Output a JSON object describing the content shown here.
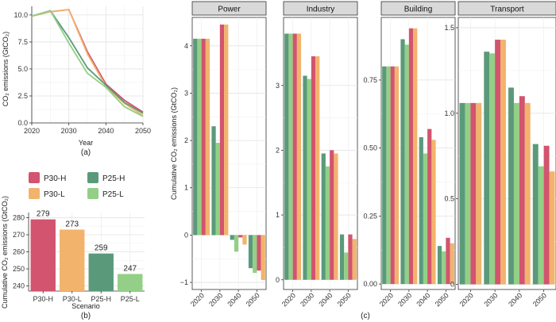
{
  "colors": {
    "P30-H": "#d2546e",
    "P30-L": "#f2b36d",
    "P25-H": "#5a9a7a",
    "P25-L": "#93cf86"
  },
  "legend": {
    "entries": [
      "P30-H",
      "P25-H",
      "P30-L",
      "P25-L"
    ]
  },
  "chart_data": [
    {
      "id": "a",
      "type": "line",
      "tag": "(a)",
      "title": "",
      "xlabel": "Year",
      "ylabel": "CO₂ emissions (GtCO₂)",
      "xlim": [
        2020,
        2050
      ],
      "ylim": [
        0,
        10.8
      ],
      "xticks": [
        "2020",
        "2025",
        "2030",
        "2035",
        "2040",
        "2045",
        "2050"
      ],
      "yticks": [
        "0.0",
        "2.5",
        "5.0",
        "7.5",
        "10.0"
      ],
      "x": [
        2020,
        2025,
        2030,
        2035,
        2040,
        2045,
        2050
      ],
      "series": [
        {
          "name": "P30-H",
          "values": [
            9.9,
            10.3,
            10.5,
            6.6,
            3.6,
            2.1,
            1.0
          ]
        },
        {
          "name": "P30-L",
          "values": [
            9.9,
            10.3,
            10.5,
            6.4,
            3.4,
            1.8,
            0.7
          ]
        },
        {
          "name": "P25-H",
          "values": [
            9.9,
            10.4,
            7.9,
            5.1,
            3.5,
            1.9,
            0.9
          ]
        },
        {
          "name": "P25-L",
          "values": [
            9.9,
            10.4,
            7.4,
            4.6,
            3.3,
            1.5,
            0.6
          ]
        }
      ]
    },
    {
      "id": "b",
      "type": "bar",
      "tag": "(b)",
      "title": "",
      "xlabel": "Scenario",
      "ylabel": "Cumulative CO₂ emissions (GtCO₂)",
      "ylim": [
        237,
        283
      ],
      "yticks": [
        "240",
        "250",
        "260",
        "270",
        "280"
      ],
      "categories": [
        "P30-H",
        "P30-L",
        "P25-H",
        "P25-L"
      ],
      "values": [
        279,
        273,
        259,
        247
      ],
      "labels": [
        "279",
        "273",
        "259",
        "247"
      ]
    },
    {
      "id": "c",
      "type": "bar",
      "tag": "(c)",
      "ylabel": "Cumulative CO₂ emissions (GtCO₂)",
      "series_order": [
        "P25-H",
        "P25-L",
        "P30-H",
        "P30-L"
      ],
      "categories": [
        "2020",
        "2030",
        "2040",
        "2050"
      ],
      "facets": [
        {
          "title": "Power",
          "ylim": [
            -1.15,
            4.6
          ],
          "yticks": [
            -1,
            0,
            1,
            2,
            3,
            4
          ],
          "ytick_labels": [
            "−1",
            "0",
            "1",
            "2",
            "3",
            "4"
          ],
          "series": [
            {
              "name": "P25-H",
              "values": [
                4.15,
                2.3,
                -0.1,
                -0.7
              ]
            },
            {
              "name": "P25-L",
              "values": [
                4.15,
                1.95,
                -0.35,
                -0.8
              ]
            },
            {
              "name": "P30-H",
              "values": [
                4.15,
                4.45,
                -0.05,
                -0.75
              ]
            },
            {
              "name": "P30-L",
              "values": [
                4.15,
                4.45,
                -0.2,
                -0.95
              ]
            }
          ]
        },
        {
          "title": "Industry",
          "ylim": [
            -0.15,
            4.05
          ],
          "yticks": [
            0,
            1,
            2,
            3
          ],
          "ytick_labels": [
            "0",
            "1",
            "2",
            "3"
          ],
          "series": [
            {
              "name": "P25-H",
              "values": [
                3.8,
                3.15,
                1.95,
                0.7
              ]
            },
            {
              "name": "P25-L",
              "values": [
                3.8,
                3.1,
                1.75,
                0.42
              ]
            },
            {
              "name": "P30-H",
              "values": [
                3.8,
                3.45,
                2.0,
                0.7
              ]
            },
            {
              "name": "P30-L",
              "values": [
                3.8,
                3.45,
                1.95,
                0.63
              ]
            }
          ]
        },
        {
          "title": "Building",
          "ylim": [
            -0.02,
            0.98
          ],
          "yticks": [
            0.0,
            0.25,
            0.5,
            0.75
          ],
          "ytick_labels": [
            "0.00",
            "0.25",
            "0.50",
            "0.75"
          ],
          "series": [
            {
              "name": "P25-H",
              "values": [
                0.8,
                0.9,
                0.54,
                0.14
              ]
            },
            {
              "name": "P25-L",
              "values": [
                0.8,
                0.88,
                0.48,
                0.12
              ]
            },
            {
              "name": "P30-H",
              "values": [
                0.8,
                0.94,
                0.57,
                0.17
              ]
            },
            {
              "name": "P30-L",
              "values": [
                0.8,
                0.94,
                0.53,
                0.15
              ]
            }
          ]
        },
        {
          "title": "Transport",
          "ylim": [
            -0.03,
            1.56
          ],
          "yticks": [
            0.0,
            0.5,
            1.0,
            1.5
          ],
          "ytick_labels": [
            "0",
            "0.5",
            "1.0",
            "1.5"
          ],
          "series": [
            {
              "name": "P25-H",
              "values": [
                1.06,
                1.36,
                1.15,
                0.82
              ]
            },
            {
              "name": "P25-L",
              "values": [
                1.06,
                1.35,
                1.06,
                0.69
              ]
            },
            {
              "name": "P30-H",
              "values": [
                1.06,
                1.43,
                1.1,
                0.81
              ]
            },
            {
              "name": "P30-L",
              "values": [
                1.06,
                1.43,
                1.06,
                0.66
              ]
            }
          ]
        }
      ]
    }
  ]
}
